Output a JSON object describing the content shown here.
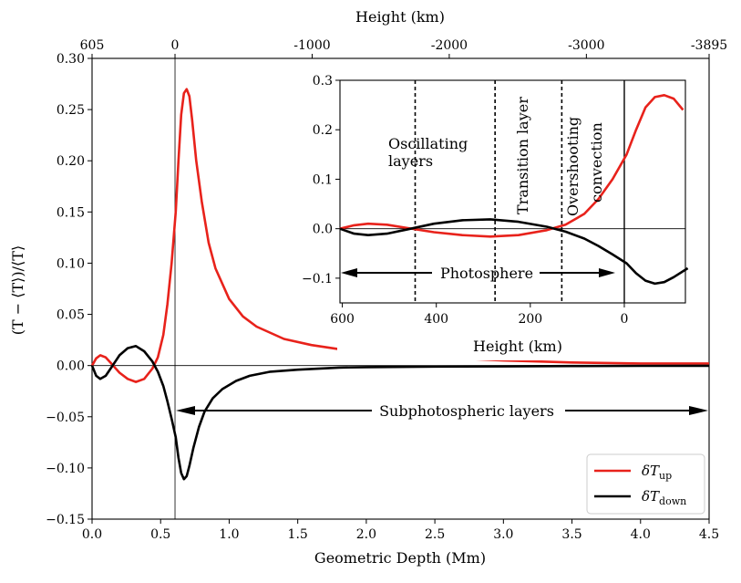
{
  "chart_data": {
    "type": "line",
    "main": {
      "xlabel": "Geometric Depth (Mm)",
      "ylabel": "(T − ⟨T⟩)/⟨T⟩",
      "top_xlabel": "Height (km)",
      "xlim": [
        0.0,
        4.5
      ],
      "ylim": [
        -0.15,
        0.3
      ],
      "x_ticks": [
        "0.0",
        "0.5",
        "1.0",
        "1.5",
        "2.0",
        "2.5",
        "3.0",
        "3.5",
        "4.0",
        "4.5"
      ],
      "y_ticks": [
        "−0.15",
        "−0.10",
        "−0.05",
        "0.00",
        "0.05",
        "0.10",
        "0.15",
        "0.20",
        "0.25",
        "0.30"
      ],
      "top_ticks": [
        {
          "depth": 0.0,
          "label": "605"
        },
        {
          "depth": 0.605,
          "label": "0"
        },
        {
          "depth": 1.605,
          "label": "-1000"
        },
        {
          "depth": 2.605,
          "label": "-2000"
        },
        {
          "depth": 3.605,
          "label": "-3000"
        },
        {
          "depth": 4.5,
          "label": "-3895"
        }
      ],
      "surface_depth": 0.605,
      "series": [
        {
          "name": "δT_up",
          "color": "#e8221b",
          "x": [
            0.0,
            0.03,
            0.06,
            0.1,
            0.14,
            0.2,
            0.26,
            0.32,
            0.38,
            0.44,
            0.48,
            0.52,
            0.55,
            0.58,
            0.61,
            0.63,
            0.65,
            0.67,
            0.69,
            0.71,
            0.73,
            0.76,
            0.8,
            0.85,
            0.9,
            1.0,
            1.1,
            1.2,
            1.4,
            1.6,
            1.8,
            2.0,
            2.5,
            3.0,
            3.5,
            4.0,
            4.5
          ],
          "y": [
            0.0,
            0.007,
            0.01,
            0.008,
            0.002,
            -0.007,
            -0.013,
            -0.016,
            -0.013,
            -0.003,
            0.008,
            0.03,
            0.06,
            0.1,
            0.15,
            0.2,
            0.245,
            0.266,
            0.27,
            0.263,
            0.24,
            0.2,
            0.16,
            0.12,
            0.095,
            0.065,
            0.048,
            0.038,
            0.026,
            0.02,
            0.016,
            0.013,
            0.008,
            0.005,
            0.003,
            0.002,
            0.002
          ]
        },
        {
          "name": "δT_down",
          "color": "#000000",
          "x": [
            0.0,
            0.03,
            0.06,
            0.1,
            0.14,
            0.2,
            0.26,
            0.32,
            0.38,
            0.44,
            0.48,
            0.52,
            0.55,
            0.58,
            0.61,
            0.63,
            0.65,
            0.67,
            0.69,
            0.71,
            0.74,
            0.78,
            0.82,
            0.88,
            0.95,
            1.05,
            1.15,
            1.3,
            1.5,
            1.8,
            2.0,
            2.5,
            3.0,
            3.5,
            4.0,
            4.5
          ],
          "y": [
            0.0,
            -0.01,
            -0.013,
            -0.01,
            -0.002,
            0.01,
            0.017,
            0.019,
            0.014,
            0.004,
            -0.006,
            -0.02,
            -0.035,
            -0.052,
            -0.07,
            -0.09,
            -0.105,
            -0.111,
            -0.108,
            -0.098,
            -0.08,
            -0.06,
            -0.045,
            -0.032,
            -0.023,
            -0.015,
            -0.01,
            -0.006,
            -0.004,
            -0.002,
            -0.0015,
            -0.001,
            -0.0008,
            -0.0005,
            -0.0003,
            -0.0002
          ]
        }
      ],
      "annotation": "Subphotospheric layers",
      "legend": {
        "position": "bottom-right",
        "labels": [
          "δT_up",
          "δT_down"
        ]
      }
    },
    "inset": {
      "xlabel": "Height (km)",
      "xlim": [
        605,
        -130
      ],
      "ylim": [
        -0.15,
        0.3
      ],
      "x_ticks": [
        "600",
        "400",
        "200",
        "0"
      ],
      "y_ticks": [
        "−0.1",
        "0.0",
        "0.1",
        "0.2",
        "0.3"
      ],
      "dashed_lines_km": [
        445,
        275,
        133
      ],
      "solid_line_km": 0,
      "region_labels": [
        "Oscillating layers",
        "Transition layer",
        "Overshooting convection"
      ],
      "annotation": "Photosphere"
    }
  }
}
